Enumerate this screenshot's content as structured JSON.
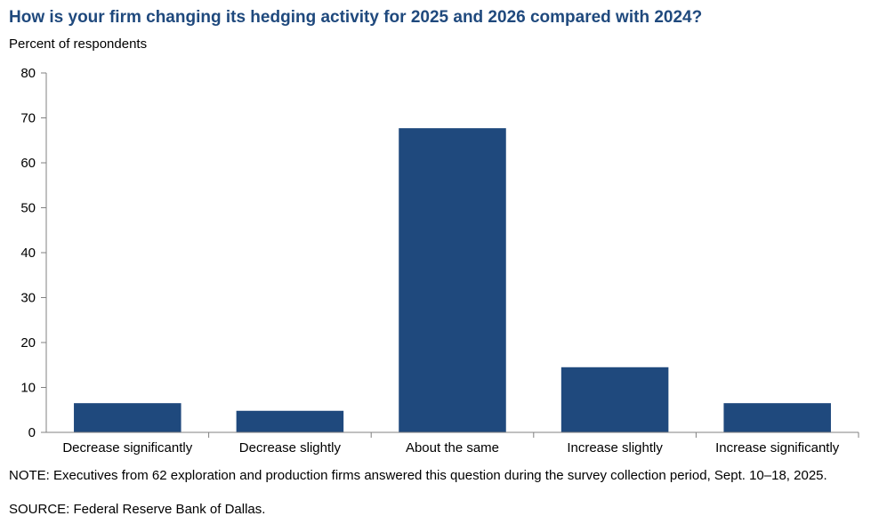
{
  "chart_data": {
    "type": "bar",
    "title": "How is your firm changing its hedging activity for 2025 and 2026 compared with 2024?",
    "ylabel": "Percent of respondents",
    "xlabel": "",
    "categories": [
      "Decrease significantly",
      "Decrease slightly",
      "About the same",
      "Increase slightly",
      "Increase significantly"
    ],
    "values": [
      6.5,
      4.8,
      67.7,
      14.5,
      6.5
    ],
    "ylim": [
      0,
      80
    ],
    "yticks": [
      "0",
      "10",
      "20",
      "30",
      "40",
      "50",
      "60",
      "70",
      "80"
    ],
    "bar_color": "#1f497d",
    "grid": false,
    "legend": "none"
  },
  "footer": {
    "note": "NOTE: Executives from 62 exploration and production firms answered this question during the survey collection period, Sept. 10–18, 2025.",
    "source": "SOURCE: Federal Reserve Bank of Dallas."
  }
}
